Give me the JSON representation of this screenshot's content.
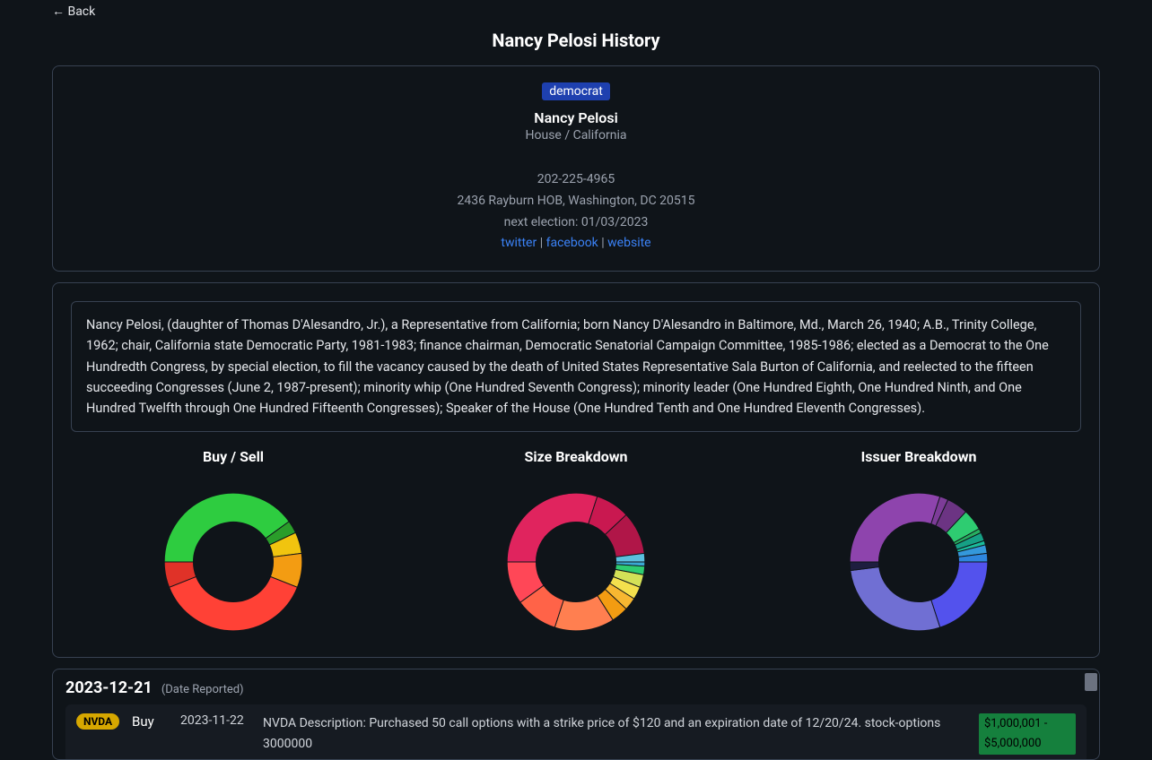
{
  "nav": {
    "back": "← Back"
  },
  "page_title": "Nancy Pelosi History",
  "profile": {
    "party": "democrat",
    "party_bg": "#1e40af",
    "name": "Nancy Pelosi",
    "chamber_state": "House / California",
    "phone": "202-225-4965",
    "address": "2436 Rayburn HOB, Washington, DC 20515",
    "next_election": "next election: 01/03/2023",
    "links": {
      "twitter": "twitter",
      "facebook": "facebook",
      "website": "website"
    }
  },
  "bio": "Nancy Pelosi, (daughter of Thomas D'Alesandro, Jr.), a Representative from California; born Nancy D'Alesandro in Baltimore, Md., March 26, 1940; A.B., Trinity College, 1962; chair, California state Democratic Party, 1981-1983; finance chairman, Democratic Senatorial Campaign Committee, 1985-1986; elected as a Democrat to the One Hundredth Congress, by special election, to fill the vacancy caused by the death of United States Representative Sala Burton of California, and reelected to the fifteen succeeding Congresses (June 2, 1987-present); minority whip (One Hundred Seventh Congress); minority leader (One Hundred Eighth, One Hundred Ninth, and One Hundred Twelfth through One Hundred Fifteenth Congresses); Speaker of the House (One Hundred Tenth and One Hundred Eleventh Congresses).",
  "charts": {
    "buy_sell": {
      "title": "Buy / Sell",
      "type": "donut",
      "slices": [
        {
          "value": 40,
          "color": "#2ecc40"
        },
        {
          "value": 3,
          "color": "#2a9d2a"
        },
        {
          "value": 5,
          "color": "#f1c40f"
        },
        {
          "value": 8,
          "color": "#f39c12"
        },
        {
          "value": 38,
          "color": "#ff4136"
        },
        {
          "value": 6,
          "color": "#e03228"
        }
      ],
      "hole_ratio": 0.58,
      "start_angle": -90
    },
    "size_breakdown": {
      "title": "Size Breakdown",
      "type": "donut",
      "slices": [
        {
          "value": 30,
          "color": "#e0245e"
        },
        {
          "value": 8,
          "color": "#c91850"
        },
        {
          "value": 10,
          "color": "#b01648"
        },
        {
          "value": 2,
          "color": "#5bc0de"
        },
        {
          "value": 1,
          "color": "#3aa9d1"
        },
        {
          "value": 2,
          "color": "#2ecc71"
        },
        {
          "value": 3,
          "color": "#d4e157"
        },
        {
          "value": 3,
          "color": "#f4e04d"
        },
        {
          "value": 3,
          "color": "#f7b731"
        },
        {
          "value": 4,
          "color": "#f39c12"
        },
        {
          "value": 14,
          "color": "#ff7f50"
        },
        {
          "value": 10,
          "color": "#ff6348"
        },
        {
          "value": 10,
          "color": "#ff4757"
        }
      ],
      "hole_ratio": 0.58,
      "start_angle": -90
    },
    "issuer_breakdown": {
      "title": "Issuer Breakdown",
      "type": "donut",
      "slices": [
        {
          "value": 30,
          "color": "#8e44ad"
        },
        {
          "value": 2,
          "color": "#7d3c98"
        },
        {
          "value": 5,
          "color": "#6c3483"
        },
        {
          "value": 5,
          "color": "#2ecc71"
        },
        {
          "value": 1,
          "color": "#27ae60"
        },
        {
          "value": 2,
          "color": "#16a085"
        },
        {
          "value": 1,
          "color": "#1abc9c"
        },
        {
          "value": 2,
          "color": "#3498db"
        },
        {
          "value": 2,
          "color": "#2e86de"
        },
        {
          "value": 20,
          "color": "#5352ed"
        },
        {
          "value": 28,
          "color": "#706fd3"
        },
        {
          "value": 2,
          "color": "#1e1e3f"
        }
      ],
      "hole_ratio": 0.58,
      "start_angle": -90
    }
  },
  "trades": {
    "date_header": "2023-12-21",
    "date_sub": "(Date Reported)",
    "rows": [
      {
        "ticker": "NVDA",
        "ticker_bg": "#d6a700",
        "type": "Buy",
        "trade_date": "2023-11-22",
        "description": "NVDA Description: Purchased 50 call options with a strike price of $120 and an expiration date of 12/20/24. stock-options 3000000",
        "amount": "$1,000,001 - $5,000,000",
        "amount_bg": "#15803d"
      }
    ]
  }
}
